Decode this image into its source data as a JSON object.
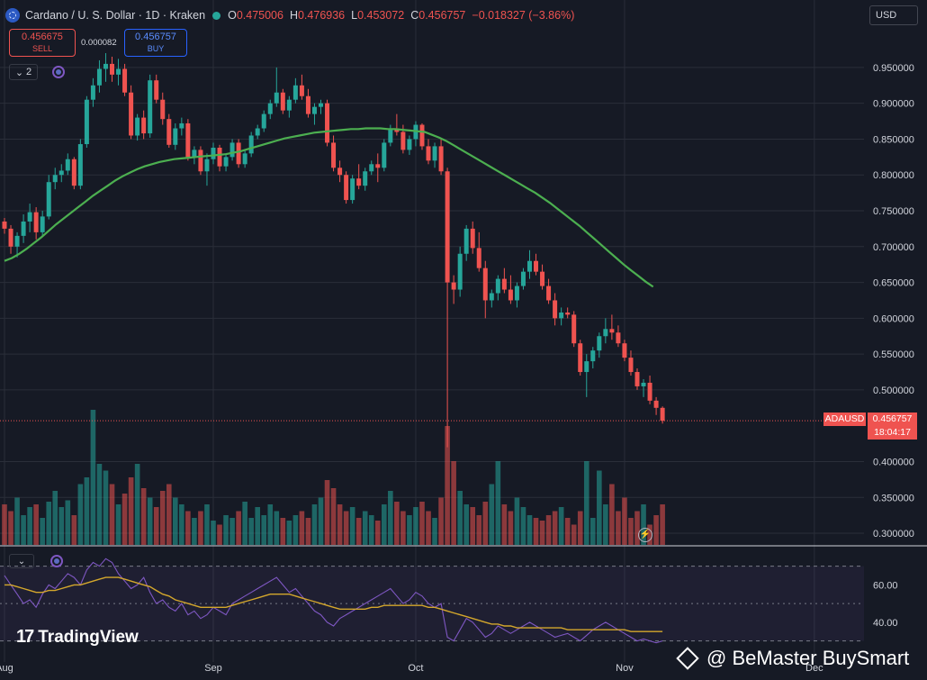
{
  "header": {
    "title": "Cardano / U. S. Dollar · 1D · Kraken",
    "open_label": "O",
    "open": "0.475006",
    "high_label": "H",
    "high": "0.476936",
    "low_label": "L",
    "low": "0.453072",
    "close_label": "C",
    "close": "0.456757",
    "change": "−0.018327 (−3.86%)"
  },
  "trade": {
    "sell_price": "0.456675",
    "sell_label": "SELL",
    "spread": "0.000082",
    "buy_price": "0.456757",
    "buy_label": "BUY"
  },
  "indicator_count": "2",
  "currency": "USD",
  "price_label": {
    "symbol": "ADAUSD",
    "price": "0.456757",
    "countdown": "18:04:17"
  },
  "branding": {
    "tradingview": "TradingView",
    "watermark": "@ BeMaster BuySmart"
  },
  "colors": {
    "up": "#26a69a",
    "down": "#ef5350",
    "ma": "#4caf50",
    "rsi": "#7e57c2",
    "rsi_ma": "#d4a72c",
    "bg": "#161a25"
  },
  "chart_data": {
    "type": "candlestick",
    "symbol": "ADAUSD",
    "x_ticks": [
      {
        "label": "Aug",
        "x": 0
      },
      {
        "label": "Sep",
        "x": 33
      },
      {
        "label": "Oct",
        "x": 65
      },
      {
        "label": "Nov",
        "x": 98
      },
      {
        "label": "Dec",
        "x": 128
      }
    ],
    "y_ticks": [
      "0.950000",
      "0.900000",
      "0.850000",
      "0.800000",
      "0.750000",
      "0.700000",
      "0.650000",
      "0.600000",
      "0.550000",
      "0.500000",
      "0.400000",
      "0.350000",
      "0.300000"
    ],
    "ylim": [
      0.29,
      0.975
    ],
    "xlim": [
      -1,
      168
    ],
    "candles": [
      [
        0.735,
        0.74,
        0.718,
        0.725
      ],
      [
        0.725,
        0.73,
        0.69,
        0.7
      ],
      [
        0.7,
        0.72,
        0.685,
        0.715
      ],
      [
        0.715,
        0.745,
        0.705,
        0.735
      ],
      [
        0.735,
        0.76,
        0.72,
        0.748
      ],
      [
        0.748,
        0.755,
        0.71,
        0.72
      ],
      [
        0.72,
        0.75,
        0.715,
        0.742
      ],
      [
        0.742,
        0.8,
        0.738,
        0.79
      ],
      [
        0.79,
        0.81,
        0.78,
        0.8
      ],
      [
        0.8,
        0.815,
        0.79,
        0.806
      ],
      [
        0.806,
        0.83,
        0.8,
        0.822
      ],
      [
        0.822,
        0.825,
        0.78,
        0.785
      ],
      [
        0.785,
        0.85,
        0.78,
        0.843
      ],
      [
        0.843,
        0.91,
        0.838,
        0.905
      ],
      [
        0.905,
        0.935,
        0.895,
        0.925
      ],
      [
        0.925,
        0.96,
        0.915,
        0.948
      ],
      [
        0.948,
        0.97,
        0.93,
        0.955
      ],
      [
        0.955,
        0.965,
        0.93,
        0.94
      ],
      [
        0.94,
        0.962,
        0.925,
        0.948
      ],
      [
        0.948,
        0.955,
        0.91,
        0.915
      ],
      [
        0.915,
        0.925,
        0.85,
        0.855
      ],
      [
        0.855,
        0.885,
        0.848,
        0.88
      ],
      [
        0.88,
        0.89,
        0.85,
        0.858
      ],
      [
        0.858,
        0.94,
        0.852,
        0.932
      ],
      [
        0.932,
        0.94,
        0.9,
        0.905
      ],
      [
        0.905,
        0.915,
        0.87,
        0.878
      ],
      [
        0.878,
        0.885,
        0.838,
        0.842
      ],
      [
        0.842,
        0.872,
        0.835,
        0.865
      ],
      [
        0.865,
        0.88,
        0.855,
        0.872
      ],
      [
        0.872,
        0.878,
        0.82,
        0.825
      ],
      [
        0.825,
        0.84,
        0.815,
        0.835
      ],
      [
        0.835,
        0.84,
        0.8,
        0.805
      ],
      [
        0.805,
        0.83,
        0.785,
        0.822
      ],
      [
        0.822,
        0.845,
        0.815,
        0.838
      ],
      [
        0.838,
        0.842,
        0.805,
        0.812
      ],
      [
        0.812,
        0.83,
        0.805,
        0.825
      ],
      [
        0.825,
        0.85,
        0.82,
        0.845
      ],
      [
        0.845,
        0.85,
        0.81,
        0.815
      ],
      [
        0.815,
        0.835,
        0.81,
        0.83
      ],
      [
        0.83,
        0.86,
        0.825,
        0.855
      ],
      [
        0.855,
        0.87,
        0.85,
        0.865
      ],
      [
        0.865,
        0.89,
        0.86,
        0.885
      ],
      [
        0.885,
        0.905,
        0.878,
        0.9
      ],
      [
        0.9,
        0.95,
        0.895,
        0.915
      ],
      [
        0.915,
        0.92,
        0.885,
        0.89
      ],
      [
        0.89,
        0.91,
        0.88,
        0.905
      ],
      [
        0.905,
        0.935,
        0.9,
        0.925
      ],
      [
        0.925,
        0.94,
        0.905,
        0.91
      ],
      [
        0.91,
        0.92,
        0.88,
        0.885
      ],
      [
        0.885,
        0.9,
        0.87,
        0.895
      ],
      [
        0.895,
        0.905,
        0.885,
        0.9
      ],
      [
        0.9,
        0.905,
        0.84,
        0.845
      ],
      [
        0.845,
        0.855,
        0.805,
        0.81
      ],
      [
        0.81,
        0.82,
        0.79,
        0.8
      ],
      [
        0.8,
        0.805,
        0.76,
        0.765
      ],
      [
        0.765,
        0.8,
        0.76,
        0.795
      ],
      [
        0.795,
        0.815,
        0.78,
        0.785
      ],
      [
        0.785,
        0.81,
        0.778,
        0.805
      ],
      [
        0.805,
        0.82,
        0.8,
        0.815
      ],
      [
        0.815,
        0.83,
        0.79,
        0.81
      ],
      [
        0.81,
        0.85,
        0.805,
        0.845
      ],
      [
        0.845,
        0.87,
        0.84,
        0.865
      ],
      [
        0.865,
        0.885,
        0.855,
        0.86
      ],
      [
        0.86,
        0.87,
        0.83,
        0.835
      ],
      [
        0.835,
        0.855,
        0.828,
        0.85
      ],
      [
        0.85,
        0.875,
        0.84,
        0.87
      ],
      [
        0.87,
        0.872,
        0.835,
        0.84
      ],
      [
        0.84,
        0.85,
        0.815,
        0.82
      ],
      [
        0.82,
        0.845,
        0.81,
        0.84
      ],
      [
        0.84,
        0.85,
        0.8,
        0.805
      ],
      [
        0.805,
        0.81,
        0.42,
        0.65
      ],
      [
        0.65,
        0.66,
        0.62,
        0.64
      ],
      [
        0.64,
        0.7,
        0.63,
        0.69
      ],
      [
        0.69,
        0.73,
        0.68,
        0.725
      ],
      [
        0.725,
        0.735,
        0.69,
        0.698
      ],
      [
        0.698,
        0.72,
        0.665,
        0.67
      ],
      [
        0.67,
        0.68,
        0.6,
        0.625
      ],
      [
        0.625,
        0.64,
        0.615,
        0.635
      ],
      [
        0.635,
        0.66,
        0.625,
        0.655
      ],
      [
        0.655,
        0.67,
        0.635,
        0.64
      ],
      [
        0.64,
        0.66,
        0.62,
        0.625
      ],
      [
        0.625,
        0.65,
        0.615,
        0.645
      ],
      [
        0.645,
        0.67,
        0.64,
        0.665
      ],
      [
        0.665,
        0.695,
        0.655,
        0.68
      ],
      [
        0.68,
        0.69,
        0.66,
        0.665
      ],
      [
        0.665,
        0.675,
        0.64,
        0.645
      ],
      [
        0.645,
        0.655,
        0.62,
        0.625
      ],
      [
        0.625,
        0.635,
        0.59,
        0.6
      ],
      [
        0.6,
        0.615,
        0.59,
        0.608
      ],
      [
        0.608,
        0.615,
        0.6,
        0.605
      ],
      [
        0.605,
        0.61,
        0.56,
        0.565
      ],
      [
        0.565,
        0.57,
        0.52,
        0.525
      ],
      [
        0.525,
        0.55,
        0.49,
        0.54
      ],
      [
        0.54,
        0.56,
        0.53,
        0.555
      ],
      [
        0.555,
        0.58,
        0.545,
        0.575
      ],
      [
        0.575,
        0.6,
        0.565,
        0.585
      ],
      [
        0.585,
        0.605,
        0.57,
        0.58
      ],
      [
        0.58,
        0.59,
        0.56,
        0.565
      ],
      [
        0.565,
        0.57,
        0.54,
        0.545
      ],
      [
        0.545,
        0.555,
        0.52,
        0.525
      ],
      [
        0.525,
        0.53,
        0.5,
        0.505
      ],
      [
        0.505,
        0.515,
        0.49,
        0.51
      ],
      [
        0.51,
        0.52,
        0.48,
        0.485
      ],
      [
        0.485,
        0.49,
        0.465,
        0.475
      ],
      [
        0.475,
        0.477,
        0.453,
        0.457
      ]
    ],
    "ma_series": [
      0.68,
      0.684,
      0.69,
      0.697,
      0.705,
      0.713,
      0.722,
      0.731,
      0.739,
      0.747,
      0.755,
      0.763,
      0.771,
      0.778,
      0.785,
      0.792,
      0.798,
      0.803,
      0.808,
      0.812,
      0.815,
      0.818,
      0.82,
      0.822,
      0.823,
      0.824,
      0.825,
      0.826,
      0.827,
      0.828,
      0.829,
      0.831,
      0.833,
      0.836,
      0.839,
      0.842,
      0.845,
      0.848,
      0.851,
      0.853,
      0.855,
      0.857,
      0.859,
      0.86,
      0.861,
      0.862,
      0.863,
      0.864,
      0.864,
      0.865,
      0.865,
      0.865,
      0.864,
      0.864,
      0.863,
      0.862,
      0.861,
      0.86,
      0.856,
      0.852,
      0.847,
      0.841,
      0.835,
      0.829,
      0.823,
      0.817,
      0.811,
      0.805,
      0.799,
      0.793,
      0.787,
      0.781,
      0.775,
      0.768,
      0.761,
      0.753,
      0.745,
      0.737,
      0.729,
      0.72,
      0.711,
      0.702,
      0.693,
      0.684,
      0.675,
      0.667,
      0.659,
      0.651,
      0.644
    ],
    "ma_start": 0,
    "volume": [
      0.3,
      0.25,
      0.35,
      0.22,
      0.28,
      0.3,
      0.2,
      0.32,
      0.4,
      0.28,
      0.33,
      0.22,
      0.45,
      0.5,
      1.0,
      0.6,
      0.55,
      0.45,
      0.3,
      0.38,
      0.5,
      0.6,
      0.42,
      0.35,
      0.28,
      0.4,
      0.45,
      0.35,
      0.3,
      0.25,
      0.2,
      0.25,
      0.3,
      0.18,
      0.15,
      0.22,
      0.2,
      0.25,
      0.32,
      0.2,
      0.28,
      0.22,
      0.3,
      0.25,
      0.2,
      0.18,
      0.22,
      0.25,
      0.2,
      0.3,
      0.35,
      0.48,
      0.42,
      0.3,
      0.25,
      0.28,
      0.2,
      0.25,
      0.22,
      0.18,
      0.3,
      0.4,
      0.32,
      0.25,
      0.22,
      0.28,
      0.32,
      0.25,
      0.2,
      0.35,
      0.88,
      0.62,
      0.4,
      0.3,
      0.28,
      0.22,
      0.32,
      0.45,
      0.62,
      0.3,
      0.25,
      0.35,
      0.28,
      0.22,
      0.2,
      0.18,
      0.22,
      0.25,
      0.28,
      0.2,
      0.15,
      0.25,
      0.62,
      0.2,
      0.55,
      0.3,
      0.45,
      0.25,
      0.35,
      0.2,
      0.25,
      0.3,
      0.15,
      0.22,
      0.3
    ],
    "volume_label_note": "",
    "rsi": {
      "y_ticks": [
        "60.00",
        "40.00"
      ],
      "levels": [
        70,
        30
      ],
      "ylim": [
        25,
        78
      ],
      "values": [
        65,
        60,
        55,
        50,
        52,
        48,
        55,
        60,
        58,
        62,
        66,
        64,
        60,
        68,
        72,
        70,
        74,
        72,
        66,
        62,
        58,
        60,
        64,
        56,
        50,
        52,
        48,
        46,
        50,
        44,
        46,
        42,
        44,
        48,
        46,
        44,
        50,
        52,
        54,
        56,
        58,
        60,
        62,
        64,
        60,
        56,
        58,
        54,
        50,
        46,
        44,
        40,
        38,
        42,
        44,
        46,
        48,
        50,
        52,
        54,
        56,
        58,
        54,
        50,
        52,
        56,
        54,
        50,
        48,
        50,
        32,
        30,
        36,
        42,
        40,
        36,
        32,
        34,
        38,
        36,
        34,
        36,
        38,
        40,
        38,
        36,
        34,
        32,
        33,
        34,
        32,
        30,
        33,
        36,
        38,
        40,
        38,
        36,
        34,
        32,
        30,
        31,
        30,
        29,
        30
      ],
      "ma": [
        60,
        60,
        59,
        58,
        57,
        56,
        56,
        57,
        57,
        58,
        59,
        60,
        60,
        61,
        62,
        63,
        64,
        64,
        64,
        63,
        62,
        61,
        60,
        59,
        57,
        55,
        54,
        52,
        51,
        50,
        49,
        48,
        48,
        48,
        48,
        48,
        49,
        50,
        51,
        52,
        53,
        54,
        55,
        55,
        55,
        55,
        54,
        53,
        52,
        51,
        50,
        49,
        48,
        47,
        47,
        47,
        47,
        47,
        48,
        48,
        49,
        49,
        49,
        49,
        49,
        49,
        49,
        48,
        48,
        47,
        46,
        45,
        44,
        43,
        42,
        41,
        40,
        39,
        39,
        38,
        38,
        37,
        37,
        37,
        37,
        37,
        37,
        37,
        37,
        36,
        36,
        36,
        36,
        36,
        36,
        36,
        36,
        36,
        36,
        35,
        35,
        35,
        35,
        35,
        35
      ]
    }
  }
}
